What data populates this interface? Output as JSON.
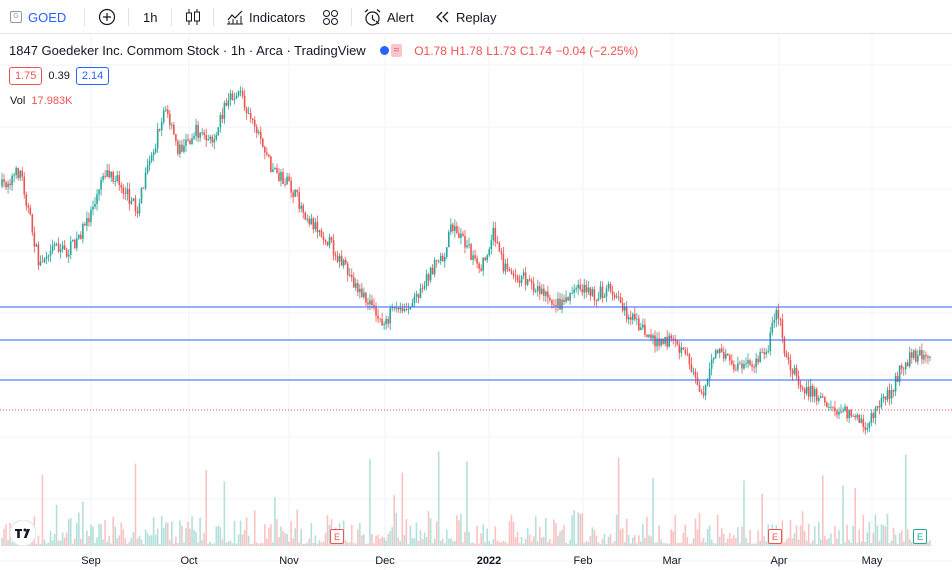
{
  "toolbar": {
    "symbol": "GOED",
    "interval": "1h",
    "indicators_label": "Indicators",
    "alert_label": "Alert",
    "replay_label": "Replay"
  },
  "legend": {
    "title": "1847 Goedeker Inc. Commom Stock · 1h · Arca · TradingView",
    "open": "O1.78",
    "high": "H1.78",
    "low": "L1.73",
    "close": "C1.74",
    "change": "−0.04 (−2.25%)",
    "bid": "1.75",
    "spread": "0.39",
    "ask": "2.14",
    "vol_label": "Vol",
    "vol_value": "17.983K"
  },
  "x_axis": {
    "labels": [
      "Sep",
      "Oct",
      "Nov",
      "Dec",
      "2022",
      "Feb",
      "Mar",
      "Apr",
      "May"
    ]
  },
  "events": [
    {
      "letter": "E",
      "type": "earnings-red"
    },
    {
      "letter": "E",
      "type": "earnings-red"
    },
    {
      "letter": "E",
      "type": "earnings-green"
    }
  ],
  "colors": {
    "up": "#26a69a",
    "down": "#ef5350",
    "accent": "#2962ff",
    "horizontal_lines": "#2962ff"
  },
  "chart_data": {
    "type": "candlestick",
    "price_path": [
      [
        0.0,
        0.26
      ],
      [
        0.02,
        0.22
      ],
      [
        0.04,
        0.46
      ],
      [
        0.055,
        0.4
      ],
      [
        0.07,
        0.43
      ],
      [
        0.09,
        0.36
      ],
      [
        0.11,
        0.22
      ],
      [
        0.13,
        0.26
      ],
      [
        0.145,
        0.32
      ],
      [
        0.16,
        0.2
      ],
      [
        0.175,
        0.06
      ],
      [
        0.19,
        0.17
      ],
      [
        0.21,
        0.12
      ],
      [
        0.225,
        0.15
      ],
      [
        0.24,
        0.06
      ],
      [
        0.255,
        0.02
      ],
      [
        0.27,
        0.09
      ],
      [
        0.29,
        0.21
      ],
      [
        0.31,
        0.26
      ],
      [
        0.33,
        0.34
      ],
      [
        0.35,
        0.39
      ],
      [
        0.37,
        0.47
      ],
      [
        0.39,
        0.54
      ],
      [
        0.41,
        0.61
      ],
      [
        0.42,
        0.58
      ],
      [
        0.44,
        0.56
      ],
      [
        0.46,
        0.48
      ],
      [
        0.475,
        0.44
      ],
      [
        0.485,
        0.36
      ],
      [
        0.5,
        0.4
      ],
      [
        0.515,
        0.48
      ],
      [
        0.53,
        0.37
      ],
      [
        0.54,
        0.46
      ],
      [
        0.56,
        0.49
      ],
      [
        0.58,
        0.52
      ],
      [
        0.6,
        0.56
      ],
      [
        0.62,
        0.51
      ],
      [
        0.64,
        0.54
      ],
      [
        0.655,
        0.51
      ],
      [
        0.67,
        0.57
      ],
      [
        0.69,
        0.62
      ],
      [
        0.71,
        0.66
      ],
      [
        0.72,
        0.65
      ],
      [
        0.74,
        0.7
      ],
      [
        0.755,
        0.78
      ],
      [
        0.77,
        0.67
      ],
      [
        0.79,
        0.72
      ],
      [
        0.81,
        0.71
      ],
      [
        0.825,
        0.67
      ],
      [
        0.835,
        0.56
      ],
      [
        0.845,
        0.69
      ],
      [
        0.86,
        0.76
      ],
      [
        0.88,
        0.79
      ],
      [
        0.9,
        0.83
      ],
      [
        0.915,
        0.83
      ],
      [
        0.93,
        0.87
      ],
      [
        0.945,
        0.81
      ],
      [
        0.96,
        0.77
      ],
      [
        0.97,
        0.71
      ],
      [
        0.98,
        0.69
      ]
    ]
  }
}
